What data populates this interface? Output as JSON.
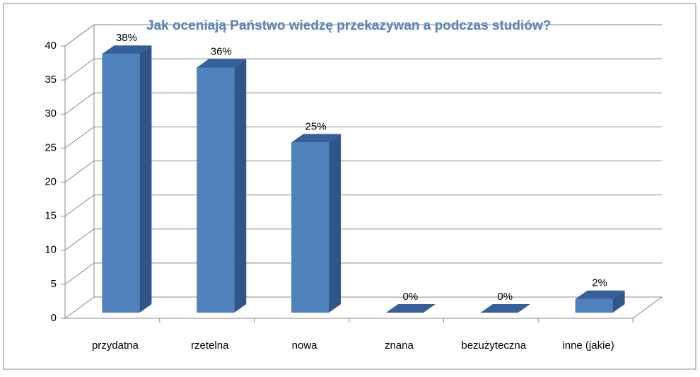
{
  "chart_data": {
    "type": "bar3d",
    "title": "Jak oceniają Państwo wiedzę przekazywan a podczas studiów?",
    "categories": [
      "przydatna",
      "rzetelna",
      "nowa",
      "znana",
      "bezużyteczna",
      "inne (jakie)"
    ],
    "values": [
      38,
      36,
      25,
      0,
      0,
      2
    ],
    "value_labels": [
      "38%",
      "36%",
      "25%",
      "0%",
      "0%",
      "2%"
    ],
    "color": "#4f81bd",
    "ylim": [
      0,
      40
    ],
    "yticks": [
      0,
      5,
      10,
      15,
      20,
      25,
      30,
      35,
      40
    ],
    "grid": true
  }
}
